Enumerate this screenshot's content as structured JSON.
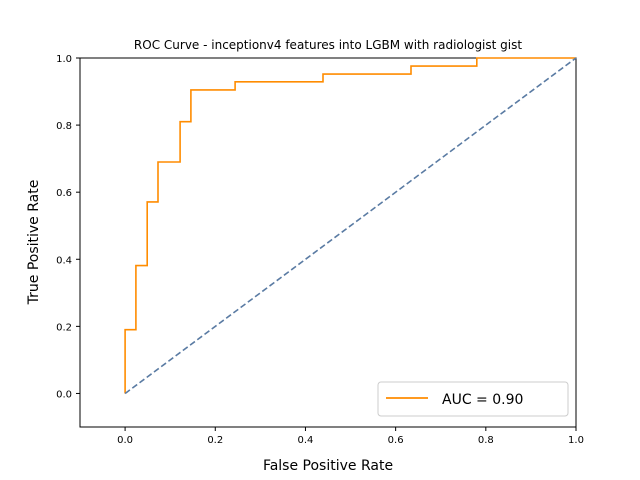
{
  "chart_data": {
    "type": "line",
    "title": "ROC Curve - inceptionv4 features into LGBM with radiologist gist",
    "xlabel": "False Positive Rate",
    "ylabel": "True Positive Rate",
    "xlim": [
      -0.1,
      1.0
    ],
    "ylim": [
      -0.1,
      1.0
    ],
    "x_ticks": [
      "0.0",
      "0.2",
      "0.4",
      "0.6",
      "0.8",
      "1.0"
    ],
    "y_ticks": [
      "0.0",
      "0.2",
      "0.4",
      "0.6",
      "0.8",
      "1.0"
    ],
    "grid": false,
    "legend_position": "lower-right",
    "series": [
      {
        "name": "AUC = 0.90",
        "color": "#ff8c00",
        "x": [
          0.0,
          0.0,
          0.024,
          0.024,
          0.049,
          0.049,
          0.073,
          0.073,
          0.122,
          0.122,
          0.146,
          0.146,
          0.244,
          0.244,
          0.439,
          0.439,
          0.634,
          0.634,
          0.78,
          0.78,
          1.0
        ],
        "y": [
          0.0,
          0.19,
          0.19,
          0.381,
          0.381,
          0.571,
          0.571,
          0.69,
          0.69,
          0.81,
          0.81,
          0.905,
          0.905,
          0.929,
          0.929,
          0.952,
          0.952,
          0.976,
          0.976,
          1.0,
          1.0
        ]
      },
      {
        "name": "",
        "color": "#5a7ba3",
        "style": "dashed",
        "x": [
          0.0,
          1.0
        ],
        "y": [
          0.0,
          1.0
        ]
      }
    ]
  }
}
